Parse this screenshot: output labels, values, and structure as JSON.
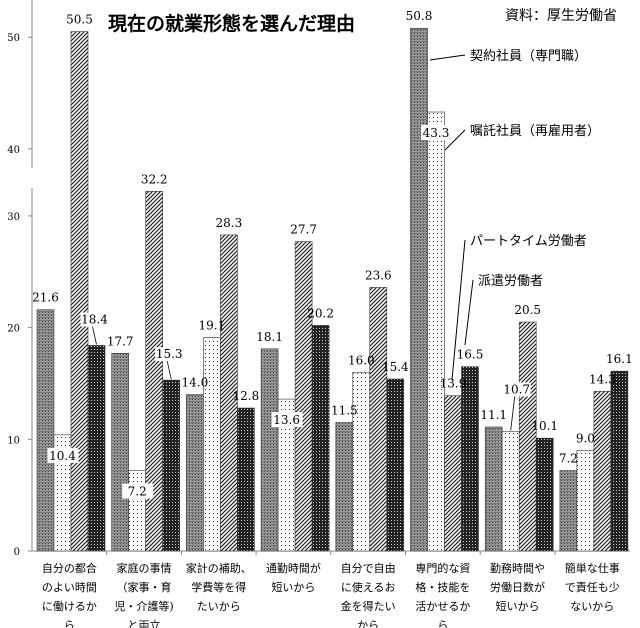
{
  "chart_data": {
    "type": "bar",
    "title": "現在の就業形態を選んだ理由",
    "source": "資料：厚生労働省",
    "xlabel": "",
    "ylabel": "",
    "ylim": [
      0,
      53
    ],
    "axis_break": [
      34,
      38
    ],
    "yticks": [
      0,
      10,
      20,
      30,
      40,
      50
    ],
    "categories": [
      [
        "自分の都合",
        "のよい時間",
        "に働けるか",
        "ら"
      ],
      [
        "家庭の事情",
        "（家事・育",
        "児・介護等)",
        "と両立"
      ],
      [
        "家計の補助、",
        "学費等を得",
        "たいから"
      ],
      [
        "通勤時間が",
        "短いから"
      ],
      [
        "自分で自由",
        "に使えるお",
        "金を得たい",
        "から"
      ],
      [
        "専門的な資",
        "格・技能を",
        "活かせるか",
        "ら"
      ],
      [
        "勤務時間や",
        "労働日数が",
        "短いから"
      ],
      [
        "簡単な仕事",
        "で責任も少",
        "ないから"
      ]
    ],
    "series": [
      {
        "name": "契約社員（専門職）",
        "pattern": "grid",
        "values": [
          21.6,
          17.7,
          14.0,
          18.1,
          11.5,
          50.8,
          11.1,
          7.2
        ]
      },
      {
        "name": "嘱託社員（再雇用者）",
        "pattern": "dots",
        "values": [
          10.4,
          7.2,
          19.1,
          13.6,
          16.0,
          43.3,
          10.7,
          9.0
        ]
      },
      {
        "name": "パートタイム労働者",
        "pattern": "diagonal",
        "values": [
          50.5,
          32.2,
          28.3,
          27.7,
          23.6,
          13.9,
          20.5,
          14.3
        ]
      },
      {
        "name": "派遣労働者",
        "pattern": "check",
        "values": [
          18.4,
          15.3,
          12.8,
          20.2,
          15.4,
          16.5,
          10.1,
          16.1
        ]
      }
    ],
    "legend": "inline-annotations"
  }
}
